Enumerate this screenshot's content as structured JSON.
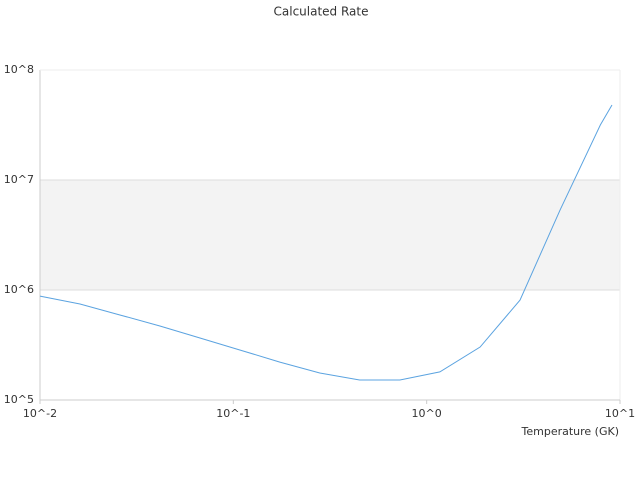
{
  "chart_data": {
    "type": "line",
    "title": "Calculated Rate",
    "x_label": "Temperature (GK)",
    "x": [
      0.01,
      0.0161,
      0.0259,
      0.0417,
      0.0672,
      0.108,
      0.174,
      0.28,
      0.45,
      0.727,
      1.17,
      1.89,
      3.04,
      4.9,
      7.91,
      9.09
    ],
    "series": [
      {
        "color": "#5ba3e0",
        "values": [
          880000,
          746000,
          593000,
          471000,
          366000,
          285000,
          221000,
          176000,
          152000,
          152000,
          180000,
          303000,
          810000,
          5340000,
          31600000,
          48100000
        ]
      }
    ],
    "x_log": true,
    "y_log": true,
    "xlim": [
      0.01,
      10
    ],
    "ylim": [
      100000,
      100000000
    ],
    "xticks": [
      {
        "value": 0.01,
        "label": "10^-2"
      },
      {
        "value": 0.1,
        "label": "10^-1"
      },
      {
        "value": 1,
        "label": "10^0"
      },
      {
        "value": 10,
        "label": "10^1"
      }
    ],
    "yticks": [
      {
        "value": 100000,
        "label": "10^5"
      },
      {
        "value": 1000000,
        "label": "10^6"
      },
      {
        "value": 10000000,
        "label": "10^7"
      },
      {
        "value": 100000000,
        "label": "10^8"
      }
    ],
    "grid": true,
    "grid_bands": true
  }
}
